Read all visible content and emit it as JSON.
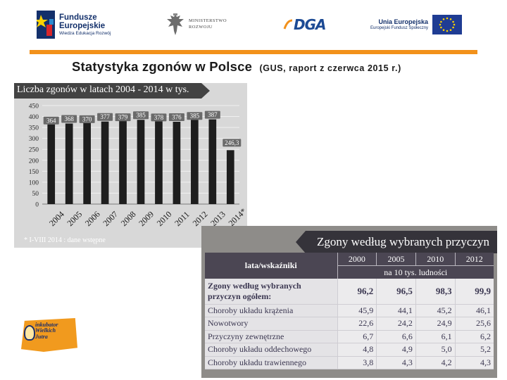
{
  "logos": {
    "fe": {
      "line1": "Fundusze",
      "line2": "Europejskie",
      "line3": "Wiedza Edukacja Rozwój"
    },
    "ministry": {
      "line1": "MINISTERSTWO",
      "line2": "ROZWOJU"
    },
    "dga": {
      "text": "DGA"
    },
    "ue": {
      "line1": "Unia Europejska",
      "line2": "Europejski Fundusz Społeczny"
    },
    "inkubator": {
      "line1": "inkubator",
      "line2": "Wielkich",
      "line3": "Jutra"
    }
  },
  "title": {
    "main": "Statystyka zgonów w Polsce",
    "sub": "(GUS, raport z czerwca 2015 r.)"
  },
  "colors": {
    "accent": "#f2911b",
    "bar": "#1e1e1e",
    "header": "#434343"
  },
  "chart_data": {
    "type": "bar",
    "title": "Liczba zgonów w latach 2004 - 2014 w tys.",
    "categories": [
      "2004",
      "2005",
      "2006",
      "2007",
      "2008",
      "2009",
      "2010",
      "2011",
      "2012",
      "2013",
      "2014*"
    ],
    "values": [
      364,
      368,
      370,
      377,
      379,
      385,
      378,
      376,
      385,
      387,
      246.3
    ],
    "value_labels": [
      "364",
      "368",
      "370",
      "377",
      "379",
      "385",
      "378",
      "376",
      "385",
      "387",
      "246,3"
    ],
    "y_ticks": [
      0,
      50,
      100,
      150,
      200,
      250,
      300,
      350,
      400,
      450
    ],
    "ylim": [
      0,
      450
    ],
    "grid": true,
    "note": "* I-VIII 2014 : dane wstępne"
  },
  "table": {
    "title": "Zgony według wybranych przyczyn",
    "header_label": "lata/wskaźniki",
    "years": [
      "2000",
      "2005",
      "2010",
      "2012"
    ],
    "unit": "na 10 tys. ludności",
    "rows": [
      {
        "label": "Zgony według wybranych przyczyn ogółem:",
        "values": [
          "96,2",
          "96,5",
          "98,3",
          "99,9"
        ]
      },
      {
        "label": "Choroby układu krążenia",
        "values": [
          "45,9",
          "44,1",
          "45,2",
          "46,1"
        ]
      },
      {
        "label": "Nowotwory",
        "values": [
          "22,6",
          "24,2",
          "24,9",
          "25,6"
        ]
      },
      {
        "label": "Przyczyny zewnętrzne",
        "values": [
          "6,7",
          "6,6",
          "6,1",
          "6,2"
        ]
      },
      {
        "label": "Choroby układu oddechowego",
        "values": [
          "4,8",
          "4,9",
          "5,0",
          "5,2"
        ]
      },
      {
        "label": "Choroby układu trawiennego",
        "values": [
          "3,8",
          "4,3",
          "4,2",
          "4,3"
        ]
      }
    ]
  }
}
